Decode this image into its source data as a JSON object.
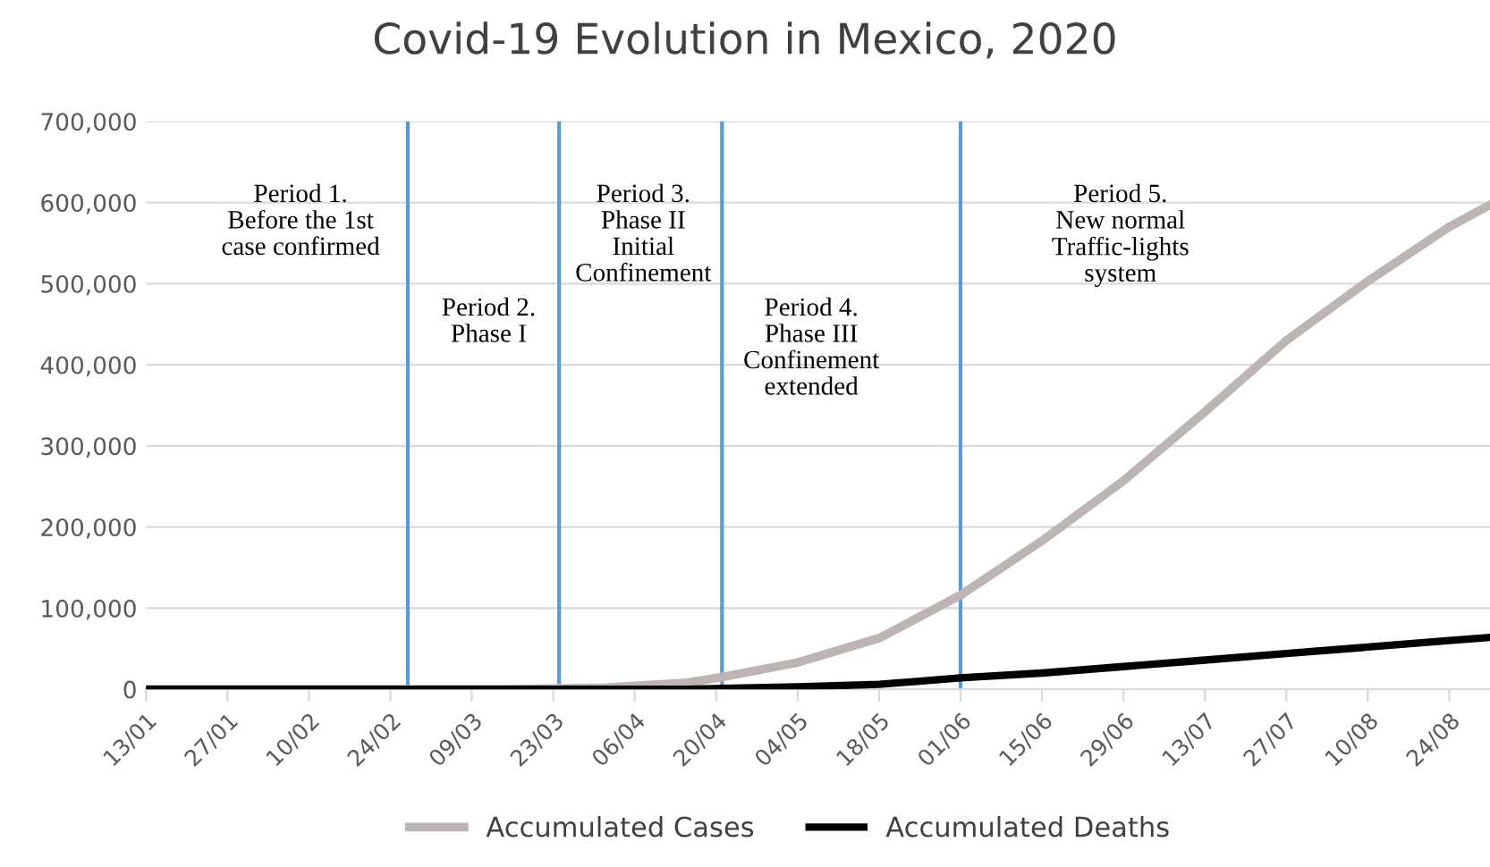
{
  "chart_data": {
    "type": "line",
    "title": "Covid-19 Evolution in Mexico, 2020",
    "x": [
      "2020-01-13",
      "2020-03-15",
      "2020-04-01",
      "2020-04-15",
      "2020-04-21",
      "2020-05-04",
      "2020-05-18",
      "2020-06-01",
      "2020-06-15",
      "2020-06-29",
      "2020-07-13",
      "2020-07-27",
      "2020-08-10",
      "2020-08-24",
      "2020-08-31"
    ],
    "series": [
      {
        "name": "Accumulated Cases",
        "color": "#bdb5b3",
        "values": [
          0,
          0,
          2000,
          8000,
          15000,
          33000,
          63000,
          116000,
          183000,
          257000,
          342000,
          430000,
          503000,
          570000,
          597000
        ]
      },
      {
        "name": "Accumulated Deaths",
        "color": "#000000",
        "values": [
          0,
          0,
          0,
          0,
          1000,
          3000,
          6000,
          14000,
          20000,
          28000,
          36000,
          44000,
          52000,
          60000,
          64000
        ]
      }
    ],
    "xlim": [
      "2020-01-13",
      "2020-08-31"
    ],
    "xticks": [
      {
        "value": "2020-01-13",
        "label": "13/01"
      },
      {
        "value": "2020-01-27",
        "label": "27/01"
      },
      {
        "value": "2020-02-10",
        "label": "10/02"
      },
      {
        "value": "2020-02-24",
        "label": "24/02"
      },
      {
        "value": "2020-03-09",
        "label": "09/03"
      },
      {
        "value": "2020-03-23",
        "label": "23/03"
      },
      {
        "value": "2020-04-06",
        "label": "06/04"
      },
      {
        "value": "2020-04-20",
        "label": "20/04"
      },
      {
        "value": "2020-05-04",
        "label": "04/05"
      },
      {
        "value": "2020-05-18",
        "label": "18/05"
      },
      {
        "value": "2020-06-01",
        "label": "01/06"
      },
      {
        "value": "2020-06-15",
        "label": "15/06"
      },
      {
        "value": "2020-06-29",
        "label": "29/06"
      },
      {
        "value": "2020-07-13",
        "label": "13/07"
      },
      {
        "value": "2020-07-27",
        "label": "27/07"
      },
      {
        "value": "2020-08-10",
        "label": "10/08"
      },
      {
        "value": "2020-08-24",
        "label": "24/08"
      }
    ],
    "ylim": [
      0,
      700000
    ],
    "yticks": [
      0,
      {
        "value": 100000,
        "label": "100,000"
      },
      {
        "value": 200000,
        "label": "200,000"
      },
      {
        "value": 300000,
        "label": "300,000"
      },
      {
        "value": 400000,
        "label": "400,000"
      },
      {
        "value": 500000,
        "label": "500,000"
      },
      {
        "value": 600000,
        "label": "600,000"
      },
      {
        "value": 700000,
        "label": "700,000"
      }
    ],
    "ref_lines": [
      {
        "axis": "x",
        "value": "2020-02-27",
        "color": "#5b9bd5"
      },
      {
        "axis": "x",
        "value": "2020-03-24",
        "color": "#5b9bd5"
      },
      {
        "axis": "x",
        "value": "2020-04-21",
        "color": "#5b9bd5"
      },
      {
        "axis": "x",
        "value": "2020-06-01",
        "color": "#5b9bd5"
      }
    ],
    "annotations": [
      "Period 1.\nBefore the 1st\ncase confirmed",
      "Period 2.\nPhase I",
      "Period 3.\nPhase II\nInitial\nConfinement",
      "Period 4.\nPhase III\nConfinement\nextended",
      "Period 5.\nNew normal\nTraffic-lights\nsystem"
    ],
    "grid": "y",
    "legend": "bottom",
    "marker": "none",
    "line_style": "solid"
  }
}
